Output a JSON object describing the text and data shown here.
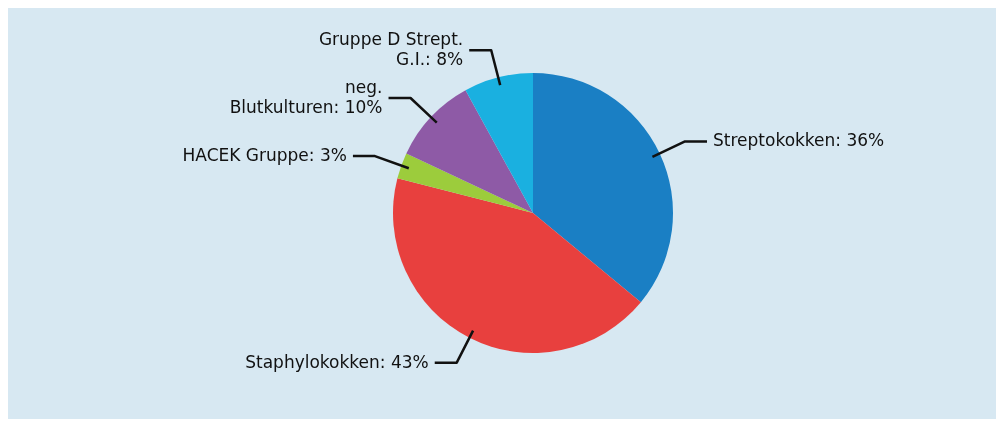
{
  "chart_data": {
    "type": "pie",
    "categories": [
      "Streptokokken",
      "Staphylokokken",
      "HACEK Gruppe",
      "neg. Blutkulturen",
      "Gruppe D Strept. G.I."
    ],
    "values": [
      36,
      43,
      3,
      10,
      8
    ],
    "value_labels": [
      "36%",
      "43%",
      "3%",
      "10%",
      "8%"
    ],
    "colors": [
      "#1a7fc4",
      "#e8403e",
      "#9ccc3c",
      "#8e5aa6",
      "#1ab0e0"
    ],
    "legend": false
  }
}
